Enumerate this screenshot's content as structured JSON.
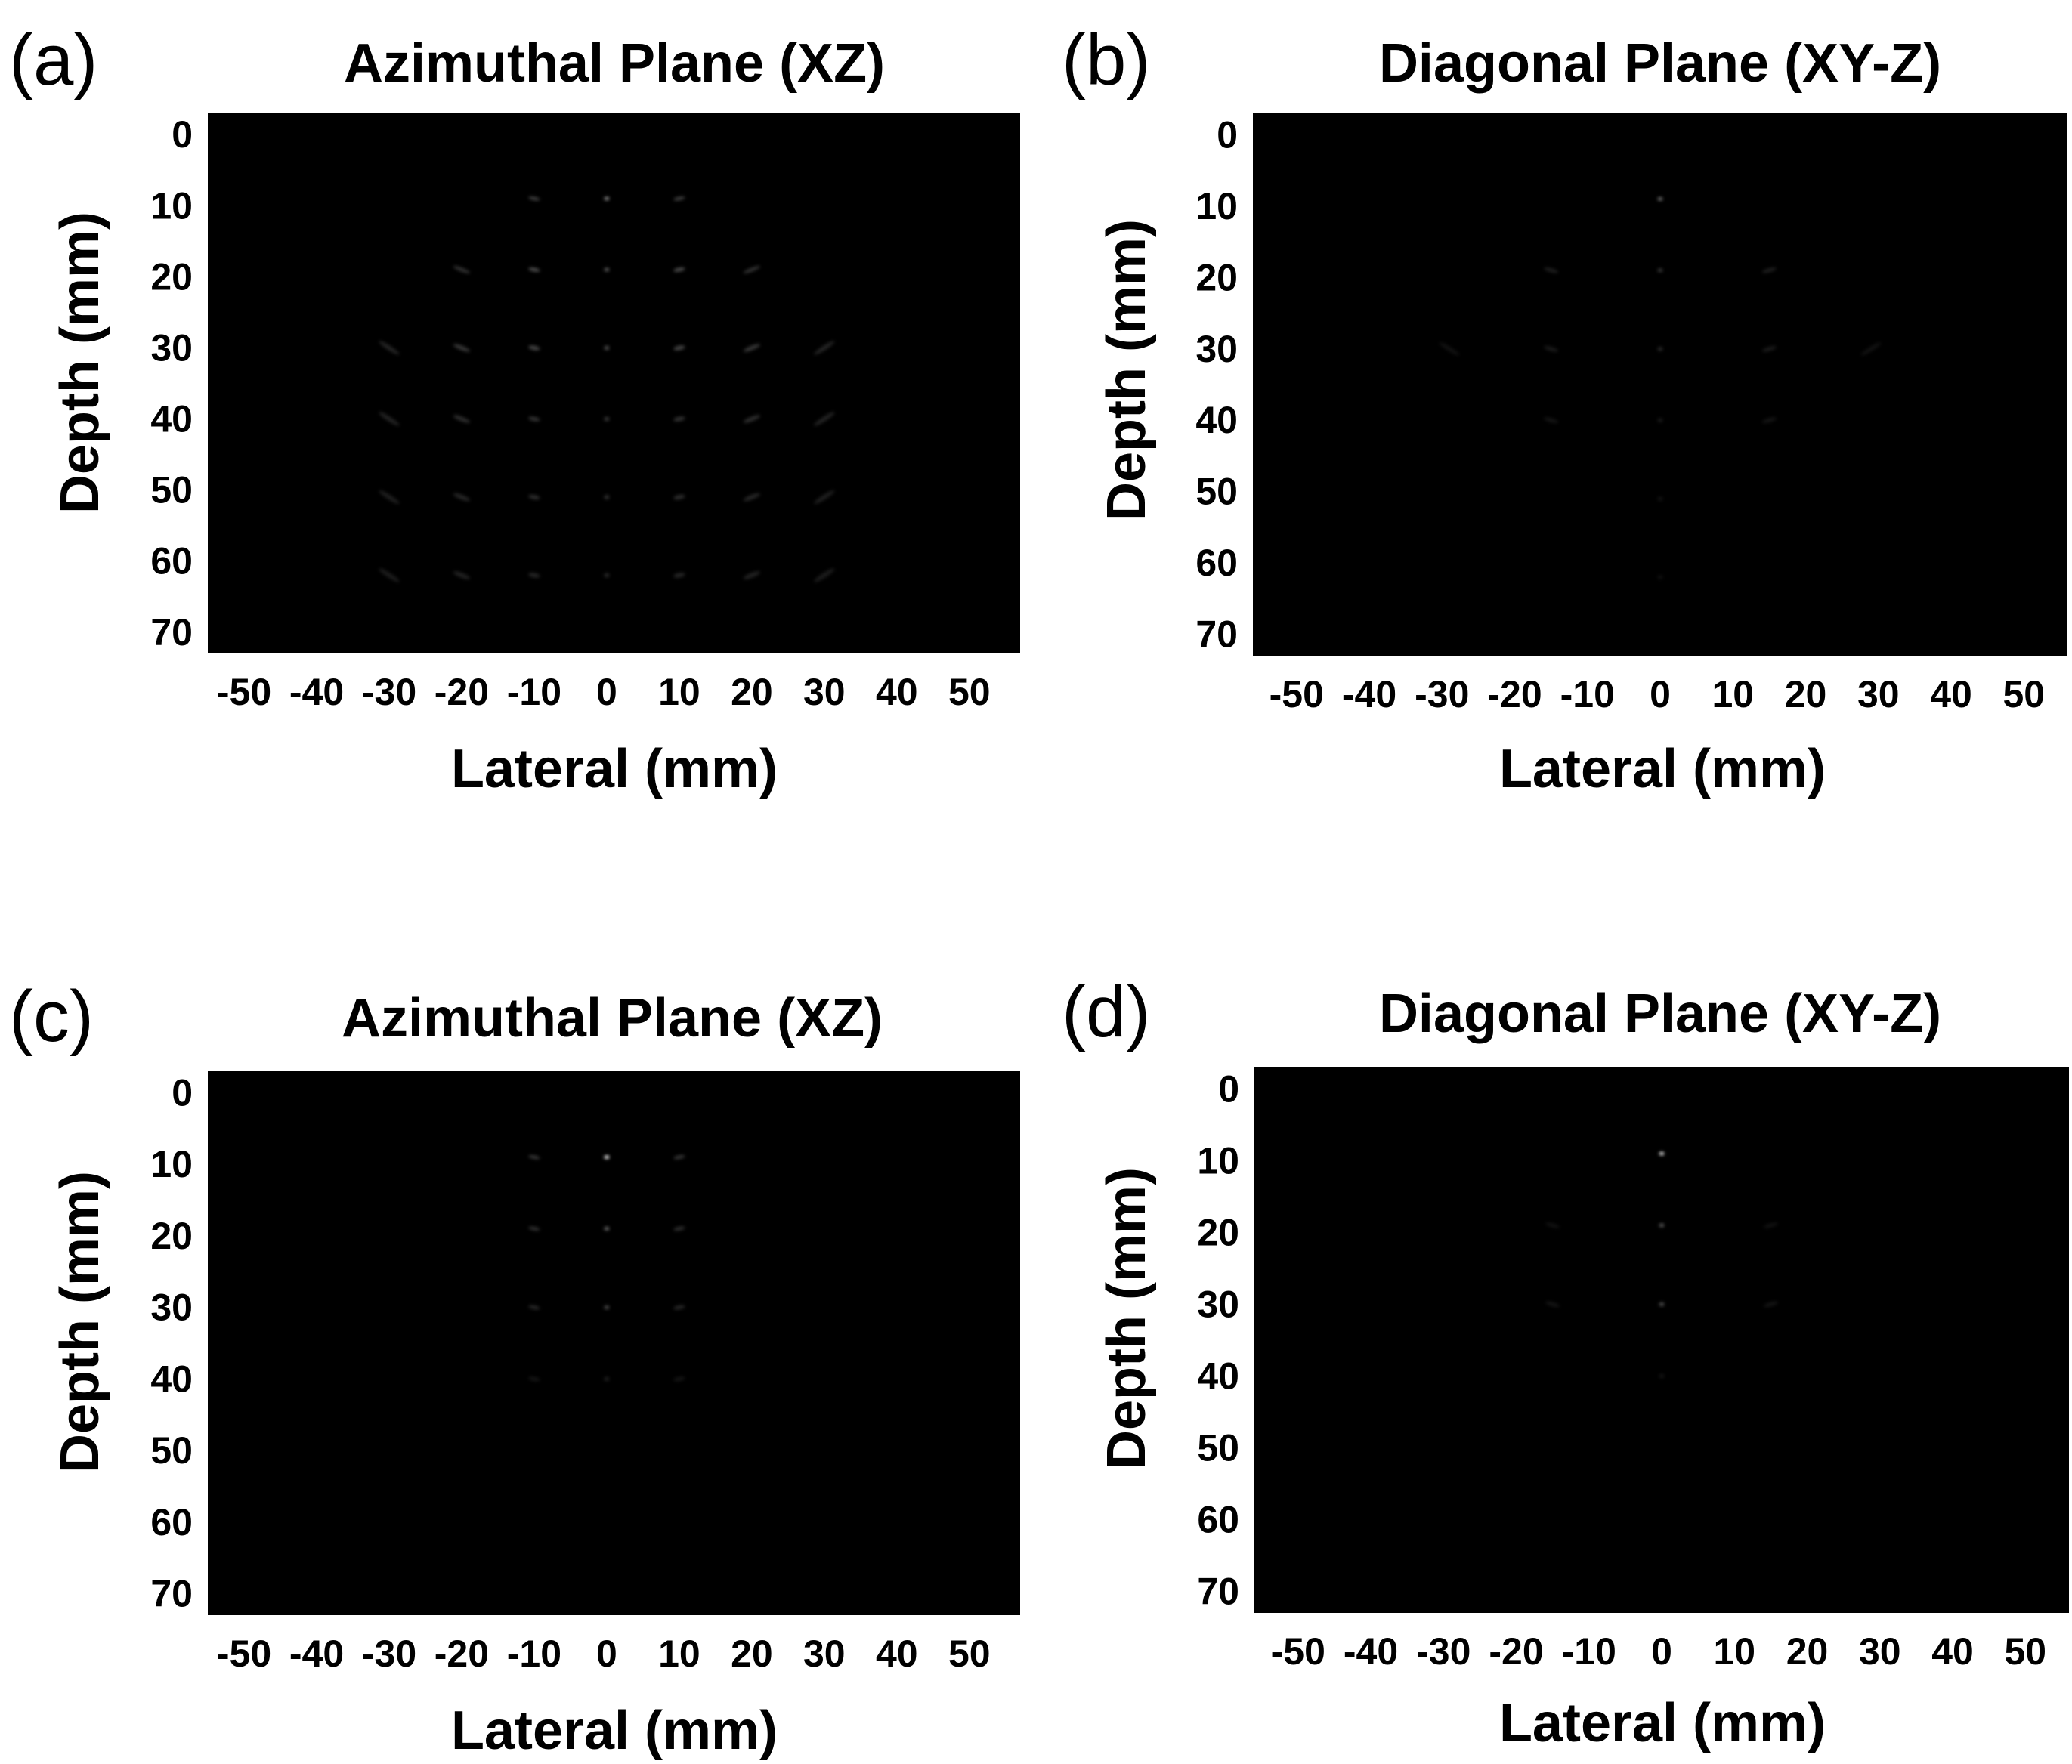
{
  "chart_data": [
    {
      "type": "heatmap",
      "panel_label": "(a)",
      "title": "Azimuthal Plane (XZ)",
      "xlabel": "Lateral (mm)",
      "ylabel": "Depth (mm)",
      "xticks": [
        "-50",
        "-40",
        "-30",
        "-20",
        "-10",
        "0",
        "10",
        "20",
        "30",
        "40",
        "50"
      ],
      "yticks": [
        "0",
        "10",
        "20",
        "30",
        "40",
        "50",
        "60",
        "70"
      ],
      "xlim": [
        -55,
        57
      ],
      "ylim": [
        -3,
        73
      ],
      "points": [
        {
          "x": 0,
          "y": 9,
          "i": 0.55
        },
        {
          "x": -10,
          "y": 9,
          "i": 0.25
        },
        {
          "x": 10,
          "y": 9,
          "i": 0.25
        },
        {
          "x": 0,
          "y": 19,
          "i": 0.35
        },
        {
          "x": -10,
          "y": 19,
          "i": 0.3
        },
        {
          "x": 10,
          "y": 19,
          "i": 0.3
        },
        {
          "x": -20,
          "y": 19,
          "i": 0.2
        },
        {
          "x": 20,
          "y": 19,
          "i": 0.2
        },
        {
          "x": 0,
          "y": 30,
          "i": 0.3
        },
        {
          "x": -10,
          "y": 30,
          "i": 0.28
        },
        {
          "x": 10,
          "y": 30,
          "i": 0.28
        },
        {
          "x": -20,
          "y": 30,
          "i": 0.22
        },
        {
          "x": 20,
          "y": 30,
          "i": 0.22
        },
        {
          "x": -30,
          "y": 30,
          "i": 0.15
        },
        {
          "x": 30,
          "y": 30,
          "i": 0.15
        },
        {
          "x": 0,
          "y": 40,
          "i": 0.22
        },
        {
          "x": -10,
          "y": 40,
          "i": 0.2
        },
        {
          "x": 10,
          "y": 40,
          "i": 0.2
        },
        {
          "x": -20,
          "y": 40,
          "i": 0.18
        },
        {
          "x": 20,
          "y": 40,
          "i": 0.18
        },
        {
          "x": -30,
          "y": 40,
          "i": 0.14
        },
        {
          "x": 30,
          "y": 40,
          "i": 0.14
        },
        {
          "x": 0,
          "y": 51,
          "i": 0.18
        },
        {
          "x": -10,
          "y": 51,
          "i": 0.17
        },
        {
          "x": 10,
          "y": 51,
          "i": 0.17
        },
        {
          "x": -20,
          "y": 51,
          "i": 0.15
        },
        {
          "x": 20,
          "y": 51,
          "i": 0.15
        },
        {
          "x": -30,
          "y": 51,
          "i": 0.12
        },
        {
          "x": 30,
          "y": 51,
          "i": 0.12
        },
        {
          "x": 0,
          "y": 62,
          "i": 0.15
        },
        {
          "x": -10,
          "y": 62,
          "i": 0.14
        },
        {
          "x": 10,
          "y": 62,
          "i": 0.14
        },
        {
          "x": -20,
          "y": 62,
          "i": 0.13
        },
        {
          "x": 20,
          "y": 62,
          "i": 0.13
        },
        {
          "x": -30,
          "y": 62,
          "i": 0.11
        },
        {
          "x": 30,
          "y": 62,
          "i": 0.11
        }
      ]
    },
    {
      "type": "heatmap",
      "panel_label": "(b)",
      "title": "Diagonal Plane (XY-Z)",
      "xlabel": "Lateral (mm)",
      "ylabel": "Depth (mm)",
      "xticks": [
        "-50",
        "-40",
        "-30",
        "-20",
        "-10",
        "0",
        "10",
        "20",
        "30",
        "40",
        "50"
      ],
      "yticks": [
        "0",
        "10",
        "20",
        "30",
        "40",
        "50",
        "60",
        "70"
      ],
      "xlim": [
        -56,
        56
      ],
      "ylim": [
        -3,
        73
      ],
      "points": [
        {
          "x": 0,
          "y": 9,
          "i": 0.45
        },
        {
          "x": 0,
          "y": 19,
          "i": 0.22
        },
        {
          "x": -15,
          "y": 19,
          "i": 0.12
        },
        {
          "x": 15,
          "y": 19,
          "i": 0.12
        },
        {
          "x": 0,
          "y": 30,
          "i": 0.16
        },
        {
          "x": -15,
          "y": 30,
          "i": 0.1
        },
        {
          "x": 15,
          "y": 30,
          "i": 0.1
        },
        {
          "x": -29,
          "y": 30,
          "i": 0.07
        },
        {
          "x": 29,
          "y": 30,
          "i": 0.07
        },
        {
          "x": 0,
          "y": 40,
          "i": 0.1
        },
        {
          "x": -15,
          "y": 40,
          "i": 0.08
        },
        {
          "x": 15,
          "y": 40,
          "i": 0.08
        },
        {
          "x": 0,
          "y": 51,
          "i": 0.07
        },
        {
          "x": 0,
          "y": 62,
          "i": 0.06
        }
      ]
    },
    {
      "type": "heatmap",
      "panel_label": "(c)",
      "title": "Azimuthal Plane (XZ)",
      "xlabel": "Lateral (mm)",
      "ylabel": "Depth (mm)",
      "xticks": [
        "-50",
        "-40",
        "-30",
        "-20",
        "-10",
        "0",
        "10",
        "20",
        "30",
        "40",
        "50"
      ],
      "yticks": [
        "0",
        "10",
        "20",
        "30",
        "40",
        "50",
        "60",
        "70"
      ],
      "xlim": [
        -55,
        57
      ],
      "ylim": [
        -3,
        73
      ],
      "points": [
        {
          "x": 0,
          "y": 9,
          "i": 0.95
        },
        {
          "x": -10,
          "y": 9,
          "i": 0.22
        },
        {
          "x": 10,
          "y": 9,
          "i": 0.22
        },
        {
          "x": 0,
          "y": 19,
          "i": 0.4
        },
        {
          "x": -10,
          "y": 19,
          "i": 0.18
        },
        {
          "x": 10,
          "y": 19,
          "i": 0.18
        },
        {
          "x": 0,
          "y": 30,
          "i": 0.28
        },
        {
          "x": -10,
          "y": 30,
          "i": 0.15
        },
        {
          "x": 10,
          "y": 30,
          "i": 0.15
        },
        {
          "x": 0,
          "y": 40,
          "i": 0.12
        },
        {
          "x": -10,
          "y": 40,
          "i": 0.08
        },
        {
          "x": 10,
          "y": 40,
          "i": 0.08
        }
      ]
    },
    {
      "type": "heatmap",
      "panel_label": "(d)",
      "title": "Diagonal Plane (XY-Z)",
      "xlabel": "Lateral (mm)",
      "ylabel": "Depth (mm)",
      "xticks": [
        "-50",
        "-40",
        "-30",
        "-20",
        "-10",
        "0",
        "10",
        "20",
        "30",
        "40",
        "50"
      ],
      "yticks": [
        "0",
        "10",
        "20",
        "30",
        "40",
        "50",
        "60",
        "70"
      ],
      "xlim": [
        -56,
        56
      ],
      "ylim": [
        -3,
        73
      ],
      "points": [
        {
          "x": 0,
          "y": 9,
          "i": 0.9
        },
        {
          "x": 0,
          "y": 19,
          "i": 0.35
        },
        {
          "x": -15,
          "y": 19,
          "i": 0.07
        },
        {
          "x": 15,
          "y": 19,
          "i": 0.07
        },
        {
          "x": 0,
          "y": 30,
          "i": 0.3
        },
        {
          "x": -15,
          "y": 30,
          "i": 0.08
        },
        {
          "x": 15,
          "y": 30,
          "i": 0.08
        },
        {
          "x": 0,
          "y": 40,
          "i": 0.08
        }
      ]
    }
  ]
}
